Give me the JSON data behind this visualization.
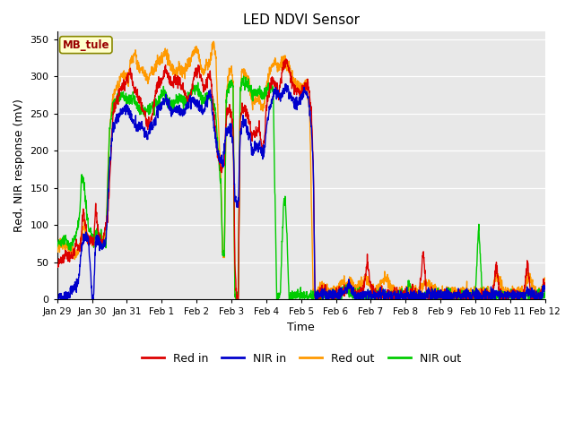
{
  "title": "LED NDVI Sensor",
  "ylabel": "Red, NIR response (mV)",
  "xlabel": "Time",
  "annotation": "MB_tule",
  "ylim": [
    0,
    360
  ],
  "yticks": [
    0,
    50,
    100,
    150,
    200,
    250,
    300,
    350
  ],
  "colors": {
    "red_in": "#dd0000",
    "nir_in": "#0000cc",
    "red_out": "#ff9900",
    "nir_out": "#00cc00"
  },
  "legend_labels": [
    "Red in",
    "NIR in",
    "Red out",
    "NIR out"
  ],
  "bg_color": "#e8e8e8",
  "fig_bg": "#ffffff",
  "tick_labels": [
    "Jan 29",
    "Jan 30",
    "Jan 31",
    "Feb 1",
    "Feb 2",
    "Feb 3",
    "Feb 4",
    "Feb 5",
    "Feb 6",
    "Feb 7",
    "Feb 8",
    "Feb 9",
    "Feb 10",
    "Feb 11",
    "Feb 12"
  ],
  "linewidth": 1.0
}
